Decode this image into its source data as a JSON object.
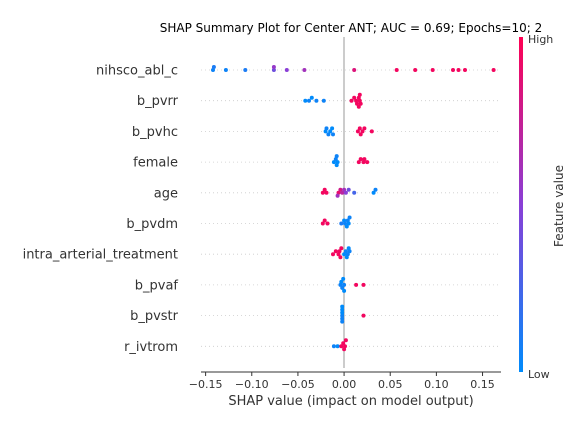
{
  "chart_data": {
    "type": "scatter",
    "subtype": "shap-beeswarm",
    "title": "SHAP Summary Plot for Center ANT; AUC = 0.69; Epochs=10; 2",
    "xlabel": "SHAP value (impact on model output)",
    "xlim": [
      -0.155,
      0.17
    ],
    "x_ticks": [
      -0.15,
      -0.1,
      -0.05,
      0.0,
      0.05,
      0.1,
      0.15
    ],
    "x_tick_labels": [
      "−0.15",
      "−0.10",
      "−0.05",
      "0.00",
      "0.05",
      "0.10",
      "0.15"
    ],
    "colorbar": {
      "label": "Feature value",
      "high_label": "High",
      "low_label": "Low",
      "low_color": "#008BFB",
      "mid_color": "#8A3FD6",
      "high_color": "#FF0052"
    },
    "features": [
      {
        "name": "nihsco_abl_c",
        "points": [
          [
            -0.142,
            0.05
          ],
          [
            -0.141,
            0.1
          ],
          [
            -0.128,
            0.05
          ],
          [
            -0.107,
            0.1
          ],
          [
            -0.076,
            0.4
          ],
          [
            -0.076,
            0.55
          ],
          [
            -0.062,
            0.5
          ],
          [
            -0.043,
            0.6
          ],
          [
            0.011,
            0.85
          ],
          [
            0.057,
            0.95
          ],
          [
            0.077,
            0.95
          ],
          [
            0.096,
            0.95
          ],
          [
            0.118,
            0.95
          ],
          [
            0.124,
            0.95
          ],
          [
            0.131,
            0.95
          ],
          [
            0.162,
            0.95
          ]
        ]
      },
      {
        "name": "b_pvrr",
        "points": [
          [
            -0.042,
            0.0
          ],
          [
            -0.038,
            0.05
          ],
          [
            -0.035,
            0.0
          ],
          [
            -0.03,
            0.05
          ],
          [
            -0.022,
            0.05
          ],
          [
            0.008,
            0.95
          ],
          [
            0.011,
            0.95
          ],
          [
            0.013,
            0.95
          ],
          [
            0.014,
            0.95
          ],
          [
            0.016,
            0.95
          ],
          [
            0.017,
            0.95
          ],
          [
            0.017,
            0.95
          ],
          [
            0.018,
            0.95
          ],
          [
            0.016,
            0.95
          ]
        ]
      },
      {
        "name": "b_pvhc",
        "points": [
          [
            -0.02,
            0.0
          ],
          [
            -0.019,
            0.05
          ],
          [
            -0.017,
            0.05
          ],
          [
            -0.015,
            0.0
          ],
          [
            -0.013,
            0.0
          ],
          [
            -0.012,
            0.05
          ],
          [
            0.015,
            0.95
          ],
          [
            0.017,
            0.95
          ],
          [
            0.018,
            0.95
          ],
          [
            0.02,
            0.95
          ],
          [
            0.022,
            0.95
          ],
          [
            0.03,
            0.95
          ]
        ]
      },
      {
        "name": "female",
        "points": [
          [
            -0.011,
            0.0
          ],
          [
            -0.009,
            0.05
          ],
          [
            -0.008,
            0.0
          ],
          [
            -0.007,
            0.0
          ],
          [
            -0.008,
            0.05
          ],
          [
            0.016,
            0.95
          ],
          [
            0.018,
            0.95
          ],
          [
            0.021,
            0.95
          ],
          [
            0.022,
            0.95
          ],
          [
            0.025,
            0.95
          ]
        ]
      },
      {
        "name": "age",
        "points": [
          [
            -0.023,
            0.95
          ],
          [
            -0.021,
            0.95
          ],
          [
            -0.019,
            0.95
          ],
          [
            -0.006,
            0.9
          ],
          [
            -0.004,
            0.8
          ],
          [
            -0.002,
            0.7
          ],
          [
            0.0,
            0.6
          ],
          [
            0.002,
            0.5
          ],
          [
            0.005,
            0.4
          ],
          [
            0.011,
            0.25
          ],
          [
            0.032,
            0.0
          ],
          [
            0.034,
            0.05
          ],
          [
            -0.007,
            0.6
          ]
        ]
      },
      {
        "name": "b_pvdm",
        "points": [
          [
            -0.023,
            0.95
          ],
          [
            -0.021,
            0.95
          ],
          [
            -0.018,
            0.95
          ],
          [
            -0.003,
            0.1
          ],
          [
            0.0,
            0.0
          ],
          [
            0.001,
            0.05
          ],
          [
            0.003,
            0.0
          ],
          [
            0.004,
            0.05
          ],
          [
            0.005,
            0.0
          ],
          [
            0.006,
            0.05
          ]
        ]
      },
      {
        "name": "intra_arterial_treatment",
        "points": [
          [
            -0.012,
            0.95
          ],
          [
            -0.009,
            0.95
          ],
          [
            -0.006,
            0.95
          ],
          [
            -0.005,
            0.95
          ],
          [
            -0.004,
            0.95
          ],
          [
            -0.003,
            0.95
          ],
          [
            0.0,
            0.0
          ],
          [
            0.002,
            0.05
          ],
          [
            0.003,
            0.0
          ],
          [
            0.004,
            0.05
          ],
          [
            0.005,
            0.0
          ],
          [
            0.006,
            0.05
          ]
        ]
      },
      {
        "name": "b_pvaf",
        "points": [
          [
            -0.004,
            0.05
          ],
          [
            -0.003,
            0.0
          ],
          [
            -0.002,
            0.05
          ],
          [
            -0.001,
            0.0
          ],
          [
            0.0,
            0.05
          ],
          [
            0.0,
            0.0
          ],
          [
            0.013,
            0.95
          ],
          [
            0.021,
            0.95
          ]
        ]
      },
      {
        "name": "b_pvstr",
        "points": [
          [
            -0.002,
            0.05
          ],
          [
            -0.002,
            0.0
          ],
          [
            -0.002,
            0.05
          ],
          [
            -0.002,
            0.0
          ],
          [
            -0.002,
            0.05
          ],
          [
            -0.002,
            0.0
          ],
          [
            0.021,
            0.95
          ]
        ]
      },
      {
        "name": "r_ivtrom",
        "points": [
          [
            -0.011,
            0.05
          ],
          [
            -0.007,
            0.0
          ],
          [
            -0.003,
            0.95
          ],
          [
            -0.001,
            0.95
          ],
          [
            0.0,
            0.95
          ],
          [
            0.001,
            0.95
          ],
          [
            0.002,
            0.95
          ]
        ]
      }
    ]
  }
}
